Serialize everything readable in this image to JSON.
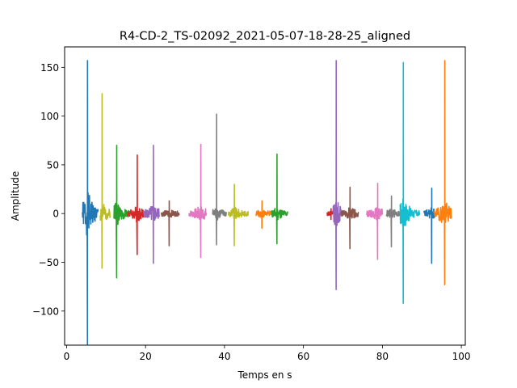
{
  "chart_data": {
    "type": "line",
    "title": "R4-CD-2_TS-02092_2021-05-07-18-28-25_aligned",
    "xlabel": "Temps en s",
    "ylabel": "Amplitude",
    "xlim": [
      -0.5,
      101
    ],
    "ylim": [
      -135,
      171
    ],
    "xticks": [
      0,
      20,
      40,
      60,
      80,
      100
    ],
    "xtick_labels": [
      "0",
      "20",
      "40",
      "60",
      "80",
      "100"
    ],
    "yticks": [
      -100,
      -50,
      0,
      50,
      100,
      150
    ],
    "ytick_labels": [
      "−100",
      "−50",
      "0",
      "50",
      "100",
      "150"
    ],
    "grid": false,
    "legend": "none",
    "series": [
      {
        "color": "#1f77b4",
        "start": 4.0,
        "end": 8.0,
        "spike_x": 5.3,
        "peak": 157,
        "trough": -134
      },
      {
        "color": "#bcbd22",
        "start": 8.5,
        "end": 11.0,
        "spike_x": 9.0,
        "peak": 123,
        "trough": -56
      },
      {
        "color": "#2ca02c",
        "start": 12.0,
        "end": 16.0,
        "spike_x": 12.7,
        "peak": 70,
        "trough": -66
      },
      {
        "color": "#d62728",
        "start": 15.5,
        "end": 19.5,
        "spike_x": 17.9,
        "peak": 60,
        "trough": -42
      },
      {
        "color": "#9467bd",
        "start": 19.5,
        "end": 23.5,
        "spike_x": 22.0,
        "peak": 70,
        "trough": -51
      },
      {
        "color": "#8c564b",
        "start": 24.0,
        "end": 28.5,
        "spike_x": 26.0,
        "peak": 13,
        "trough": -33
      },
      {
        "color": "#e377c2",
        "start": 31.0,
        "end": 35.5,
        "spike_x": 34.0,
        "peak": 71,
        "trough": -45
      },
      {
        "color": "#7f7f7f",
        "start": 37.0,
        "end": 40.5,
        "spike_x": 38.0,
        "peak": 102,
        "trough": -32
      },
      {
        "color": "#bcbd22",
        "start": 41.0,
        "end": 46.0,
        "spike_x": 42.5,
        "peak": 30,
        "trough": -33
      },
      {
        "color": "#ff7f0e",
        "start": 48.0,
        "end": 52.0,
        "spike_x": 49.5,
        "peak": 13,
        "trough": -15
      },
      {
        "color": "#2ca02c",
        "start": 52.0,
        "end": 56.0,
        "spike_x": 53.3,
        "peak": 61,
        "trough": -31
      },
      {
        "color": "#d62728",
        "start": 66.0,
        "end": 68.5,
        "spike_x": 67.0,
        "peak": 5,
        "trough": -6
      },
      {
        "color": "#9467bd",
        "start": 67.5,
        "end": 69.5,
        "spike_x": 68.3,
        "peak": 157,
        "trough": -78
      },
      {
        "color": "#8c564b",
        "start": 69.5,
        "end": 74.0,
        "spike_x": 71.8,
        "peak": 27,
        "trough": -36
      },
      {
        "color": "#e377c2",
        "start": 76.0,
        "end": 80.0,
        "spike_x": 78.8,
        "peak": 31,
        "trough": -47
      },
      {
        "color": "#7f7f7f",
        "start": 81.0,
        "end": 84.5,
        "spike_x": 82.3,
        "peak": 18,
        "trough": -34
      },
      {
        "color": "#17becf",
        "start": 84.5,
        "end": 89.5,
        "spike_x": 85.3,
        "peak": 155,
        "trough": -92
      },
      {
        "color": "#1f77b4",
        "start": 90.5,
        "end": 93.5,
        "spike_x": 92.5,
        "peak": 26,
        "trough": -51
      },
      {
        "color": "#ff7f0e",
        "start": 93.0,
        "end": 97.5,
        "spike_x": 95.8,
        "peak": 157,
        "trough": -73
      }
    ]
  }
}
